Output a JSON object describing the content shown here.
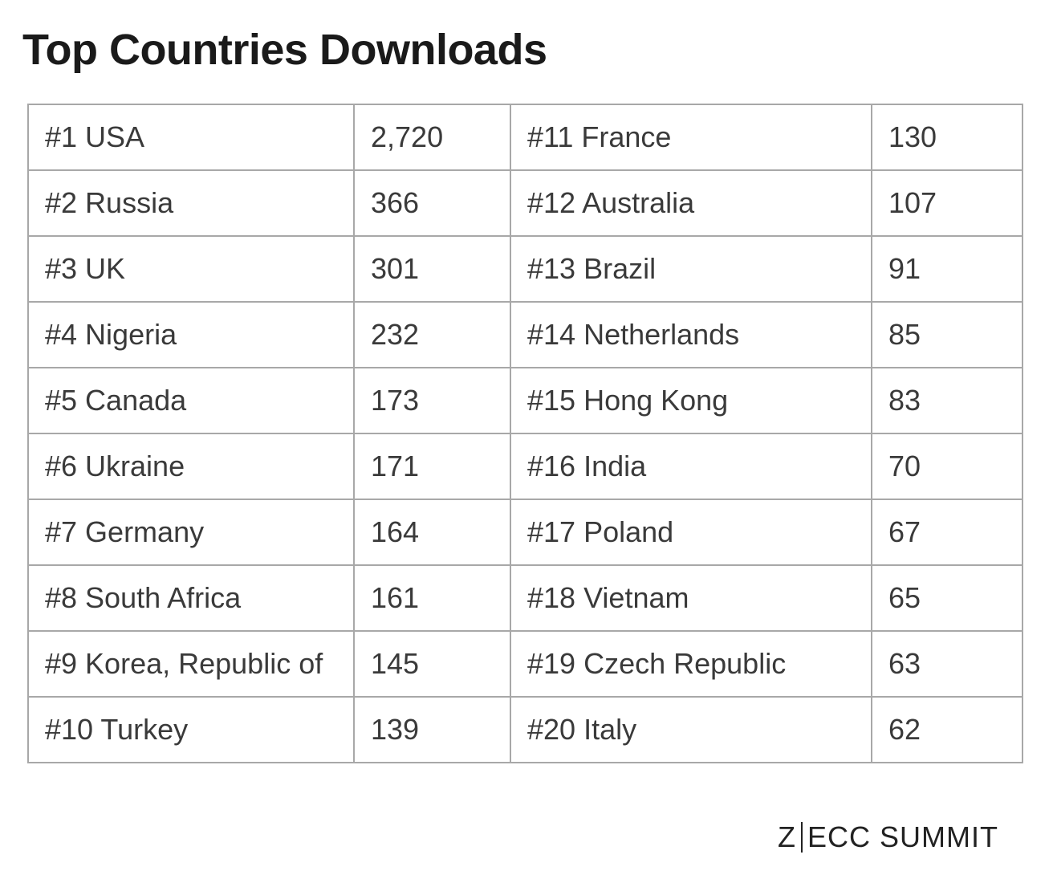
{
  "title": "Top Countries Downloads",
  "rows": [
    {
      "left_country": "#1 USA",
      "left_count": "2,720",
      "right_country": "#11 France",
      "right_count": "130"
    },
    {
      "left_country": "#2 Russia",
      "left_count": "366",
      "right_country": "#12 Australia",
      "right_count": "107"
    },
    {
      "left_country": "#3 UK",
      "left_count": "301",
      "right_country": "#13 Brazil",
      "right_count": "91"
    },
    {
      "left_country": "#4 Nigeria",
      "left_count": "232",
      "right_country": "#14 Netherlands",
      "right_count": "85"
    },
    {
      "left_country": "#5 Canada",
      "left_count": "173",
      "right_country": "#15 Hong Kong",
      "right_count": "83"
    },
    {
      "left_country": "#6 Ukraine",
      "left_count": "171",
      "right_country": "#16 India",
      "right_count": "70"
    },
    {
      "left_country": "#7 Germany",
      "left_count": "164",
      "right_country": "#17 Poland",
      "right_count": "67"
    },
    {
      "left_country": "#8 South Africa",
      "left_count": "161",
      "right_country": "#18 Vietnam",
      "right_count": "65"
    },
    {
      "left_country": "#9 Korea, Republic of",
      "left_count": "145",
      "right_country": "#19 Czech Republic",
      "right_count": "63"
    },
    {
      "left_country": "#10 Turkey",
      "left_count": "139",
      "right_country": "#20 Italy",
      "right_count": "62"
    }
  ],
  "brand": {
    "prefix": "Z",
    "suffix": "ECC SUMMIT"
  },
  "colors": {
    "border": "#a8a8a8",
    "text": "#3a3a3a",
    "title": "#1a1a1a"
  }
}
